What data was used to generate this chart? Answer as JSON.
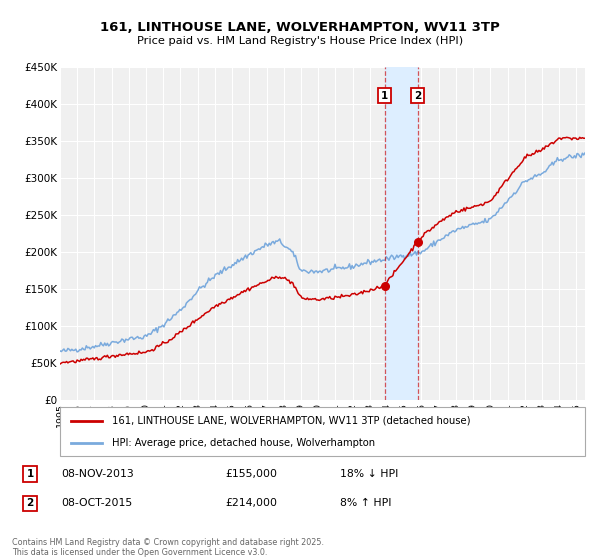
{
  "title": "161, LINTHOUSE LANE, WOLVERHAMPTON, WV11 3TP",
  "subtitle": "Price paid vs. HM Land Registry's House Price Index (HPI)",
  "legend_label_red": "161, LINTHOUSE LANE, WOLVERHAMPTON, WV11 3TP (detached house)",
  "legend_label_blue": "HPI: Average price, detached house, Wolverhampton",
  "footer": "Contains HM Land Registry data © Crown copyright and database right 2025.\nThis data is licensed under the Open Government Licence v3.0.",
  "ylim": [
    0,
    450000
  ],
  "yticks": [
    0,
    50000,
    100000,
    150000,
    200000,
    250000,
    300000,
    350000,
    400000,
    450000
  ],
  "ytick_labels": [
    "£0",
    "£50K",
    "£100K",
    "£150K",
    "£200K",
    "£250K",
    "£300K",
    "£350K",
    "£400K",
    "£450K"
  ],
  "xlim_start": 1995,
  "xlim_end": 2025.5,
  "xticks": [
    1995,
    1996,
    1997,
    1998,
    1999,
    2000,
    2001,
    2002,
    2003,
    2004,
    2005,
    2006,
    2007,
    2008,
    2009,
    2010,
    2011,
    2012,
    2013,
    2014,
    2015,
    2016,
    2017,
    2018,
    2019,
    2020,
    2021,
    2022,
    2023,
    2024,
    2025
  ],
  "transaction1_date": 2013.86,
  "transaction1_price": 155000,
  "transaction2_date": 2015.77,
  "transaction2_price": 214000,
  "red_color": "#cc0000",
  "blue_color": "#7aaadd",
  "shaded_color": "#ddeeff",
  "background_color": "#f0f0f0",
  "grid_color": "#ffffff",
  "hpi_anchors_x": [
    1995,
    1996,
    1997,
    1998,
    1999,
    2000,
    2001,
    2002,
    2003,
    2004,
    2005,
    2006,
    2007,
    2007.75,
    2008.5,
    2009,
    2010,
    2011,
    2012,
    2013,
    2014,
    2015,
    2016,
    2017,
    2018,
    2019,
    2020,
    2021,
    2022,
    2023,
    2024,
    2025.5
  ],
  "hpi_anchors_y": [
    66000,
    69000,
    73000,
    78000,
    83000,
    86000,
    102000,
    122000,
    148000,
    168000,
    183000,
    197000,
    210000,
    215000,
    200000,
    175000,
    174000,
    177000,
    181000,
    187000,
    191000,
    196000,
    200000,
    216000,
    230000,
    237000,
    244000,
    270000,
    296000,
    306000,
    326000,
    332000
  ],
  "pp_anchors_x": [
    1995,
    1996,
    1997,
    1998,
    1999,
    2000,
    2001,
    2002,
    2003,
    2004,
    2005,
    2006,
    2007,
    2007.75,
    2008.5,
    2009,
    2010,
    2011,
    2012,
    2013,
    2013.86,
    2015.77,
    2016,
    2017,
    2018,
    2019,
    2020,
    2021,
    2022,
    2023,
    2024,
    2025.5
  ],
  "pp_anchors_y": [
    51000,
    53000,
    56000,
    60000,
    63000,
    65000,
    76000,
    92000,
    110000,
    127000,
    139000,
    151000,
    161000,
    168000,
    159000,
    138000,
    136000,
    139000,
    142000,
    149000,
    155000,
    214000,
    221000,
    240000,
    255000,
    261000,
    269000,
    299000,
    328000,
    338000,
    354000,
    354000
  ],
  "noise_seed": 42,
  "n_points": 400
}
